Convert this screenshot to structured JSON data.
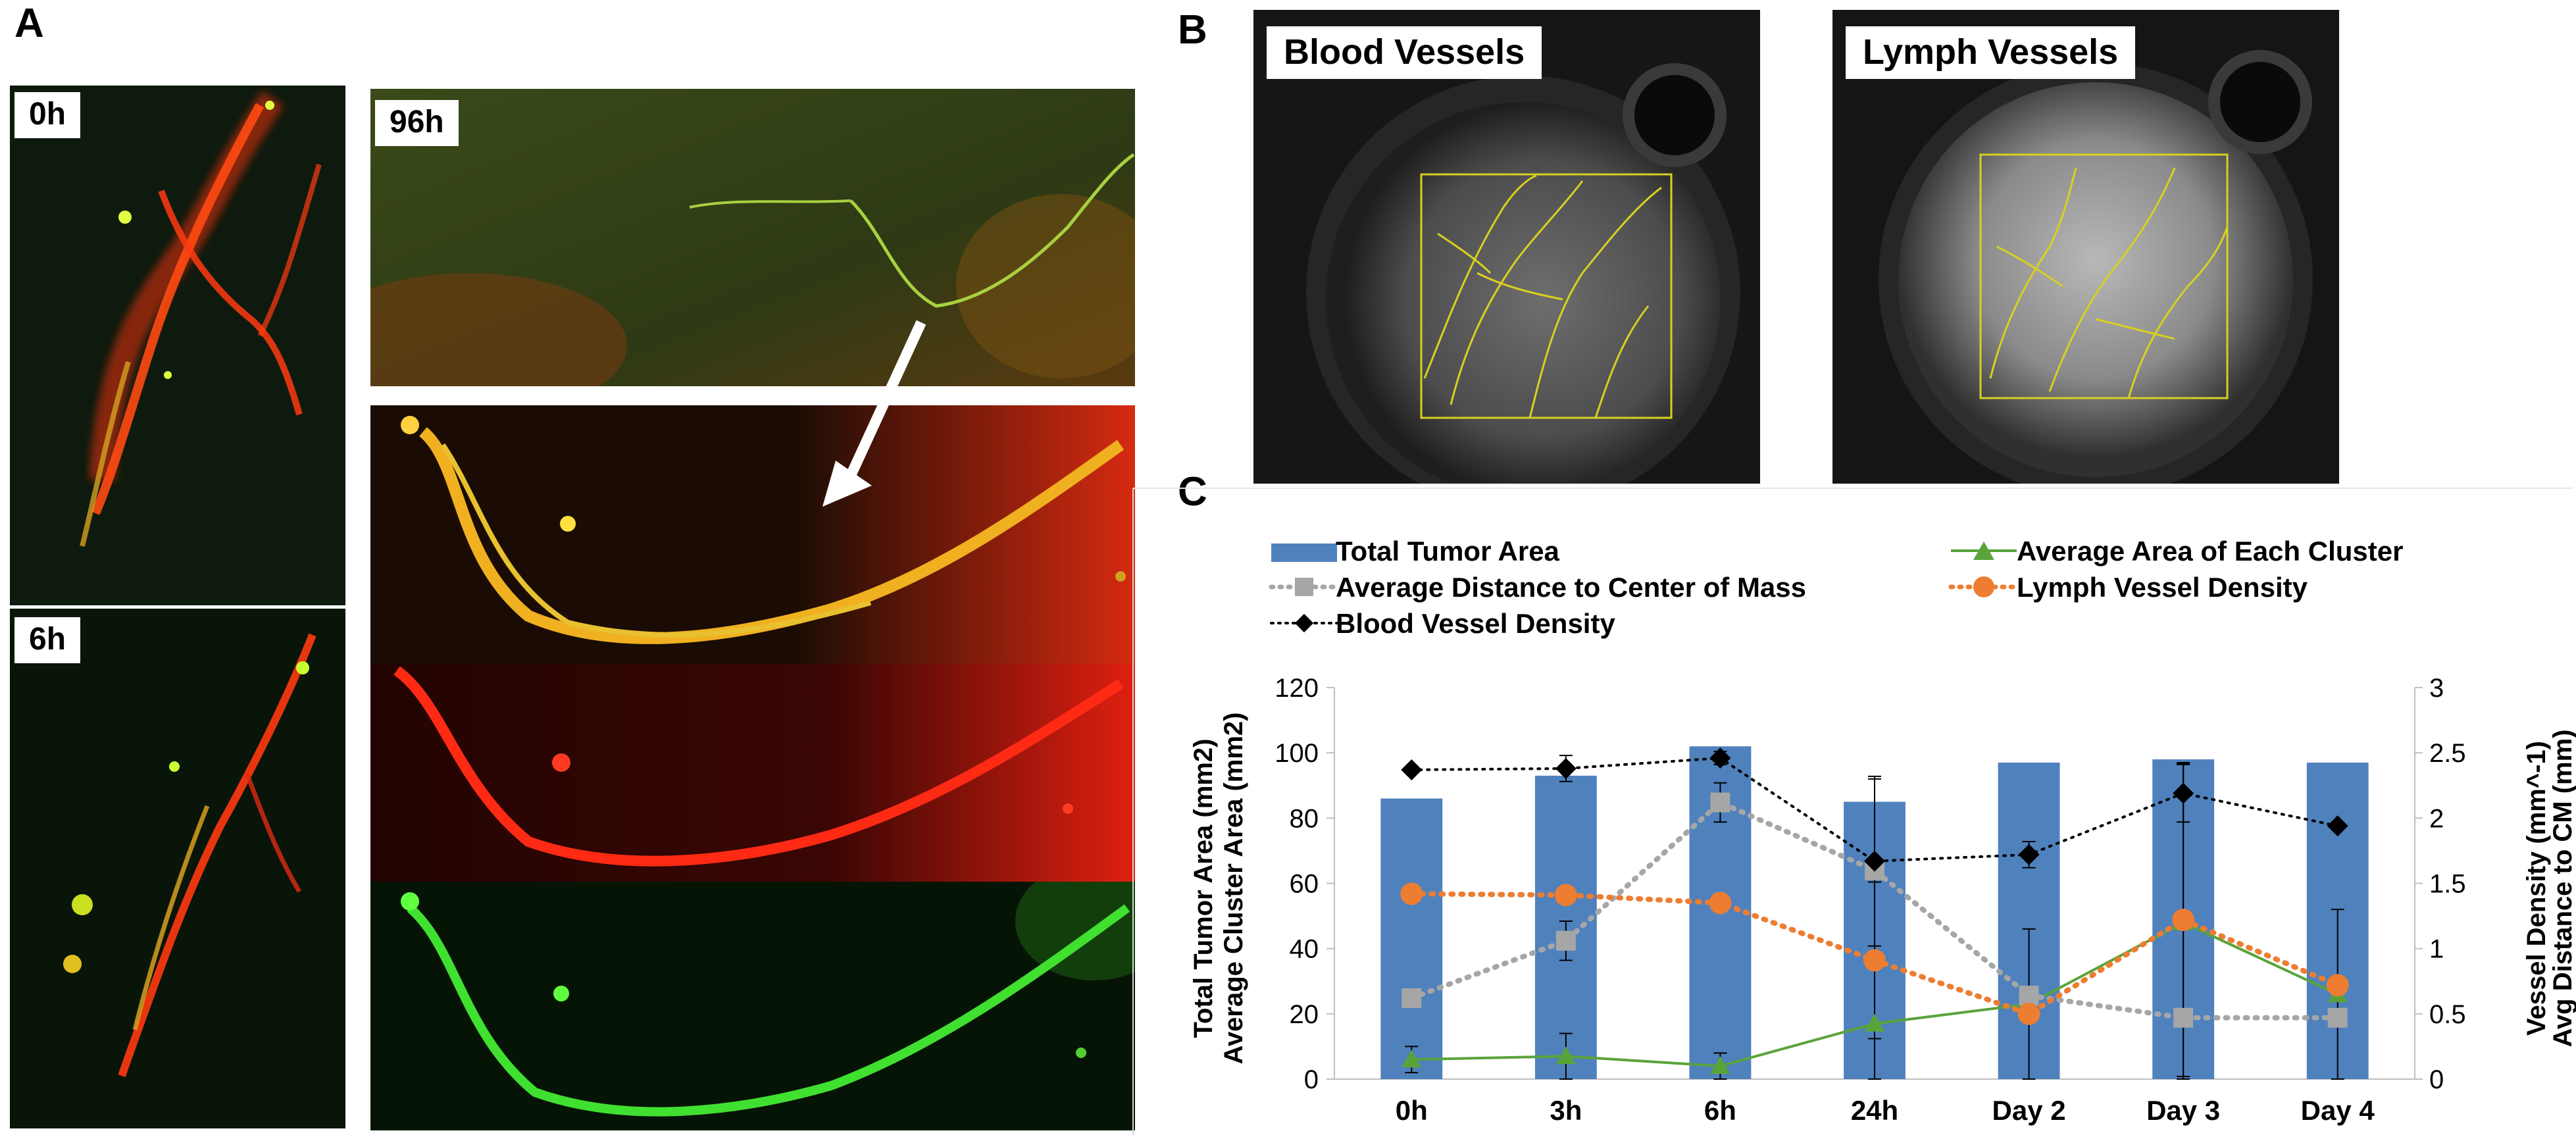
{
  "panels": {
    "a_label": "A",
    "b_label": "B",
    "c_label": "C"
  },
  "panel_a": {
    "time_0h": "0h",
    "time_6h": "6h",
    "time_96h": "96h"
  },
  "panel_b": {
    "blood_title": "Blood Vessels",
    "lymph_title": "Lymph Vessels"
  },
  "colors": {
    "bar": "#4f81bd",
    "cluster": "#5aa33b",
    "distance": "#a6a6a6",
    "lymph": "#ed7d31",
    "blood": "#000000"
  },
  "chart_data": {
    "type": "bar",
    "categories": [
      "0h",
      "3h",
      "6h",
      "24h",
      "Day 2",
      "Day 3",
      "Day 4"
    ],
    "ylabel_left": [
      "Total Tumor Area (mm2)",
      "Average Cluster Area (mm2)"
    ],
    "ylabel_right": [
      "Vessel Density (mm^-1)",
      "Avg Distance to CM (mm)"
    ],
    "ylim_left": [
      0,
      120
    ],
    "yticks_left": [
      0,
      20,
      40,
      60,
      80,
      100,
      120
    ],
    "ylim_right": [
      0,
      3
    ],
    "yticks_right": [
      "0",
      "0.5",
      "1",
      "1.5",
      "2",
      "2.5",
      "3"
    ],
    "legend": {
      "bar": "Total Tumor Area",
      "cluster": "Average Area of Each Cluster",
      "distance": "Average Distance to Center of Mass",
      "lymph": "Lymph Vessel Density",
      "blood": "Blood Vessel Density"
    },
    "series": [
      {
        "name": "Total Tumor Area",
        "axis": "left",
        "kind": "bar",
        "values": [
          86,
          93,
          102,
          85,
          97,
          98,
          97
        ],
        "err": [
          0,
          0,
          0,
          0,
          0,
          0,
          0
        ]
      },
      {
        "name": "Average Area of Each Cluster",
        "axis": "left",
        "kind": "line",
        "values": [
          6,
          7,
          4,
          17,
          23,
          48,
          26
        ],
        "err": [
          4,
          7,
          4,
          17,
          23,
          49,
          26
        ]
      },
      {
        "name": "Average Distance to Center of Mass",
        "axis": "right",
        "kind": "line",
        "values": [
          0.62,
          1.06,
          2.12,
          1.6,
          0.64,
          0.47,
          0.47
        ],
        "err": [
          0,
          0.15,
          0.15,
          0.7,
          0,
          0,
          0
        ]
      },
      {
        "name": "Lymph Vessel Density",
        "axis": "right",
        "kind": "line",
        "values": [
          1.42,
          1.41,
          1.35,
          0.91,
          0.5,
          1.22,
          0.72
        ],
        "err": [
          0,
          0,
          0,
          0.6,
          0,
          1.2,
          0
        ]
      },
      {
        "name": "Blood Vessel Density",
        "axis": "right",
        "kind": "line",
        "values": [
          2.37,
          2.38,
          2.46,
          1.67,
          1.72,
          2.19,
          1.94
        ],
        "err": [
          0,
          0.1,
          0.05,
          0.65,
          0.1,
          0.22,
          0
        ]
      }
    ]
  }
}
